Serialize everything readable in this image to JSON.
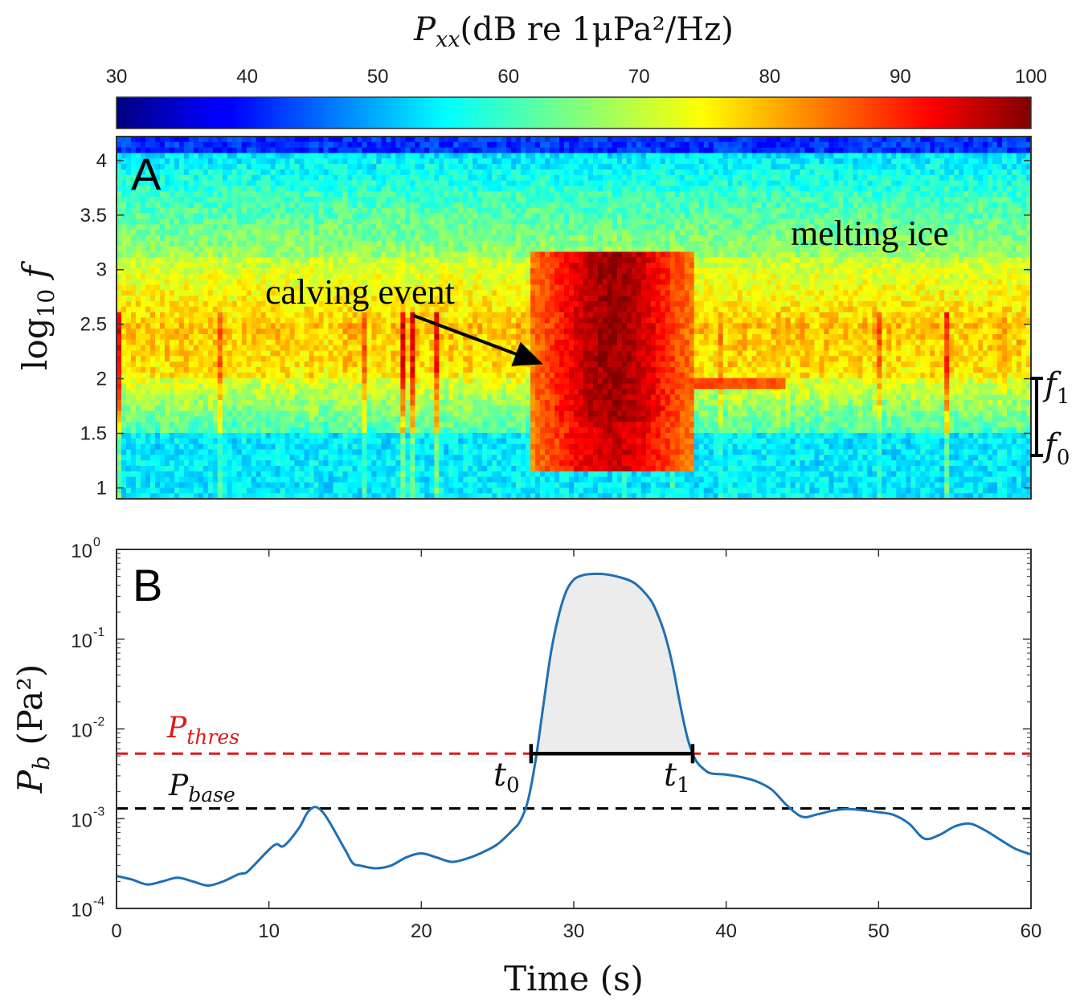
{
  "chart_data": [
    {
      "panel": "A",
      "type": "heatmap",
      "colorbar": {
        "label_base": "P",
        "label_sub": "xx",
        "label_unit": "(dB re 1μPa²/Hz)",
        "ticks": [
          "30",
          "40",
          "50",
          "60",
          "70",
          "80",
          "90",
          "100"
        ],
        "range": [
          30,
          100
        ],
        "colormap": "jet"
      },
      "ylabel_base": "log",
      "ylabel_sub": "10",
      "ylabel_var": "f",
      "yticks": [
        "1",
        "1.5",
        "2",
        "2.5",
        "3",
        "3.5",
        "4"
      ],
      "ylim": [
        0.9,
        4.22
      ],
      "xlim": [
        0,
        60
      ],
      "annotations": {
        "calving": "calving event",
        "melting": "melting ice",
        "f1": "f",
        "f1_sub": "1",
        "f0": "f",
        "f0_sub": "0"
      },
      "band_log10f": [
        1.5,
        2.0
      ],
      "calving_window_s": [
        27,
        38
      ]
    },
    {
      "panel": "B",
      "type": "line",
      "yscale": "log",
      "ylim": [
        0.0001,
        1
      ],
      "xlim": [
        0,
        60
      ],
      "xticks": [
        "0",
        "10",
        "20",
        "30",
        "40",
        "50",
        "60"
      ],
      "ytick_base": "10",
      "ytick_exponents": [
        "0",
        "-1",
        "-2",
        "-3",
        "-4"
      ],
      "xlabel": "Time (s)",
      "ylabel_var": "P",
      "ylabel_sub": "b",
      "ylabel_unit": "(Pa²)",
      "P_thres": 0.0053,
      "P_base": 0.0013,
      "thres_label": "P",
      "thres_sub": "thres",
      "base_label": "P",
      "base_sub": "base",
      "t0": 27.2,
      "t1": 37.8,
      "t0_label": "t",
      "t0_sub": "0",
      "t1_label": "t",
      "t1_sub": "1",
      "series": [
        {
          "color": "#1f6fb5",
          "x": [
            0,
            1,
            2,
            3,
            4,
            5,
            6,
            7,
            8,
            8.5,
            9,
            10,
            10.5,
            11,
            12,
            12.5,
            13,
            13.5,
            14,
            15,
            15.5,
            16,
            17,
            18,
            19,
            20,
            21,
            22,
            23,
            24,
            25,
            26,
            26.5,
            27,
            27.5,
            28,
            28.5,
            29,
            29.5,
            30,
            30.5,
            31,
            32,
            33,
            34,
            35,
            35.5,
            36,
            36.5,
            37,
            37.5,
            38,
            38.5,
            39,
            40,
            41,
            42,
            43,
            44,
            45,
            46,
            47,
            48,
            49,
            50,
            51,
            52,
            53,
            54,
            55,
            56,
            57,
            58,
            59,
            60
          ],
          "y": [
            0.00023,
            0.00021,
            0.000185,
            0.0002,
            0.00022,
            0.0002,
            0.00018,
            0.0002,
            0.00024,
            0.00025,
            0.0003,
            0.00045,
            0.00052,
            0.0005,
            0.0008,
            0.00115,
            0.00135,
            0.0012,
            0.0009,
            0.00045,
            0.00032,
            0.0003,
            0.00028,
            0.0003,
            0.00037,
            0.00041,
            0.00037,
            0.00033,
            0.00036,
            0.00042,
            0.00052,
            0.00075,
            0.00095,
            0.0016,
            0.0045,
            0.018,
            0.07,
            0.18,
            0.34,
            0.46,
            0.51,
            0.53,
            0.53,
            0.49,
            0.42,
            0.28,
            0.19,
            0.11,
            0.05,
            0.018,
            0.0075,
            0.0045,
            0.0036,
            0.0032,
            0.0031,
            0.0029,
            0.0026,
            0.0021,
            0.0014,
            0.00105,
            0.00112,
            0.00123,
            0.00128,
            0.00124,
            0.00118,
            0.0011,
            0.00088,
            0.0006,
            0.00066,
            0.00082,
            0.00088,
            0.00074,
            0.00058,
            0.00046,
            0.0004
          ]
        }
      ]
    }
  ]
}
